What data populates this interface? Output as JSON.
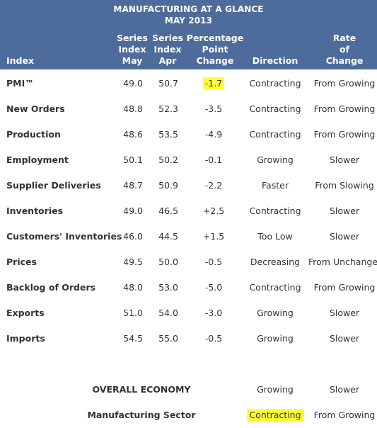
{
  "header": {
    "title_line1": "MANUFACTURING AT A GLANCE",
    "title_line2": "MAY 2013",
    "col_index": "Index",
    "col_may": [
      "Series",
      "Index",
      "May"
    ],
    "col_apr": [
      "Series",
      "Index",
      "Apr"
    ],
    "col_pct": [
      "Percentage",
      "Point",
      "Change"
    ],
    "col_dir": "Direction",
    "col_rate": [
      "Rate",
      "of",
      "Change"
    ]
  },
  "rows": [
    {
      "index": "PMI™",
      "may": "49.0",
      "apr": "50.7",
      "pct": "-1.7",
      "direction": "Contracting",
      "rate": "From Growing"
    },
    {
      "index": "New Orders",
      "may": "48.8",
      "apr": "52.3",
      "pct": "-3.5",
      "direction": "Contracting",
      "rate": "From Growing"
    },
    {
      "index": "Production",
      "may": "48.6",
      "apr": "53.5",
      "pct": "-4.9",
      "direction": "Contracting",
      "rate": "From Growing"
    },
    {
      "index": "Employment",
      "may": "50.1",
      "apr": "50.2",
      "pct": "-0.1",
      "direction": "Growing",
      "rate": "Slower"
    },
    {
      "index": "Supplier Deliveries",
      "may": "48.7",
      "apr": "50.9",
      "pct": "-2.2",
      "direction": "Faster",
      "rate": "From Slowing"
    },
    {
      "index": "Inventories",
      "may": "49.0",
      "apr": "46.5",
      "pct": "+2.5",
      "direction": "Contracting",
      "rate": "Slower"
    },
    {
      "index": "Customers' Inventories",
      "may": "46.0",
      "apr": "44.5",
      "pct": "+1.5",
      "direction": "Too Low",
      "rate": "Slower"
    },
    {
      "index": "Prices",
      "may": "49.5",
      "apr": "50.0",
      "pct": "-0.5",
      "direction": "Decreasing",
      "rate": "From Unchanged"
    },
    {
      "index": "Backlog of Orders",
      "may": "48.0",
      "apr": "53.0",
      "pct": "-5.0",
      "direction": "Contracting",
      "rate": "From Growing"
    },
    {
      "index": "Exports",
      "may": "51.0",
      "apr": "54.0",
      "pct": "-3.0",
      "direction": "Growing",
      "rate": "Slower"
    },
    {
      "index": "Imports",
      "may": "54.5",
      "apr": "55.0",
      "pct": "-0.5",
      "direction": "Growing",
      "rate": "Slower"
    }
  ],
  "summary": [
    {
      "label": "OVERALL ECONOMY",
      "direction": "Growing",
      "rate": "Slower"
    },
    {
      "label": "Manufacturing Sector",
      "direction": "Contracting",
      "rate": "From Growing"
    }
  ],
  "colors": {
    "header_bg": "#4d6c9c",
    "highlight": "#ffff33"
  }
}
